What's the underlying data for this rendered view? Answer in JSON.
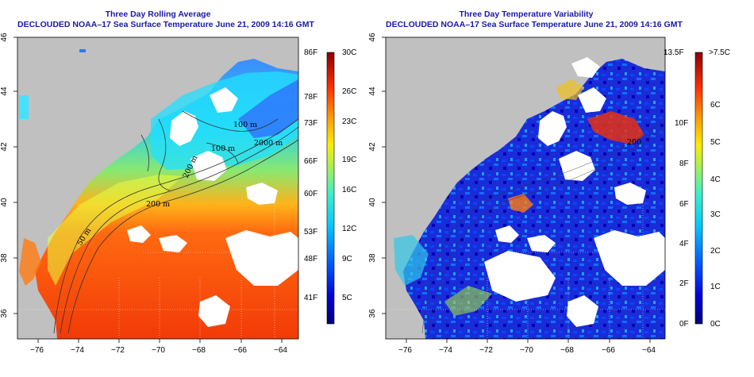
{
  "left_panel": {
    "title_line1": "Three Day Rolling Average",
    "title_line2": "DECLOUDED NOAA–17 Sea Surface Temperature June 21, 2009 14:16 GMT",
    "x_ticks": [
      "−76",
      "−74",
      "−72",
      "−70",
      "−68",
      "−66",
      "−64"
    ],
    "y_ticks": [
      "36",
      "38",
      "40",
      "42",
      "44",
      "46"
    ],
    "contour_labels": [
      "100 m",
      "2000 m",
      "100 m",
      "200 m",
      "50 m",
      "200 m"
    ],
    "colorbar_left_labels": [
      "86F",
      "78F",
      "73F",
      "66F",
      "60F",
      "53F",
      "48F",
      "41F"
    ],
    "colorbar_right_labels": [
      "30C",
      "26C",
      "23C",
      "19C",
      "16C",
      "12C",
      "9C",
      "5C"
    ]
  },
  "right_panel": {
    "title_line1": "Three Day Temperature Variability",
    "title_line2": "DECLOUDED NOAA–17 Sea Surface Temperature June 21, 2009 14:16 GMT",
    "x_ticks": [
      "−76",
      "−74",
      "−72",
      "−70",
      "−68",
      "−66",
      "−64"
    ],
    "y_ticks": [
      "36",
      "38",
      "40",
      "42",
      "44",
      "46"
    ],
    "contour_labels": [
      "200"
    ],
    "colorbar_left_labels": [
      "13.5F",
      "10F",
      "8F",
      "6F",
      "4F",
      "2F",
      "0F"
    ],
    "colorbar_right_labels": [
      ">7.5C",
      "6C",
      "5C",
      "4C",
      "3C",
      "2C",
      "1C",
      "0C"
    ]
  },
  "colors": {
    "land": "#c0c0c0",
    "cloud": "#ffffff",
    "title": "#1a1aa8"
  }
}
